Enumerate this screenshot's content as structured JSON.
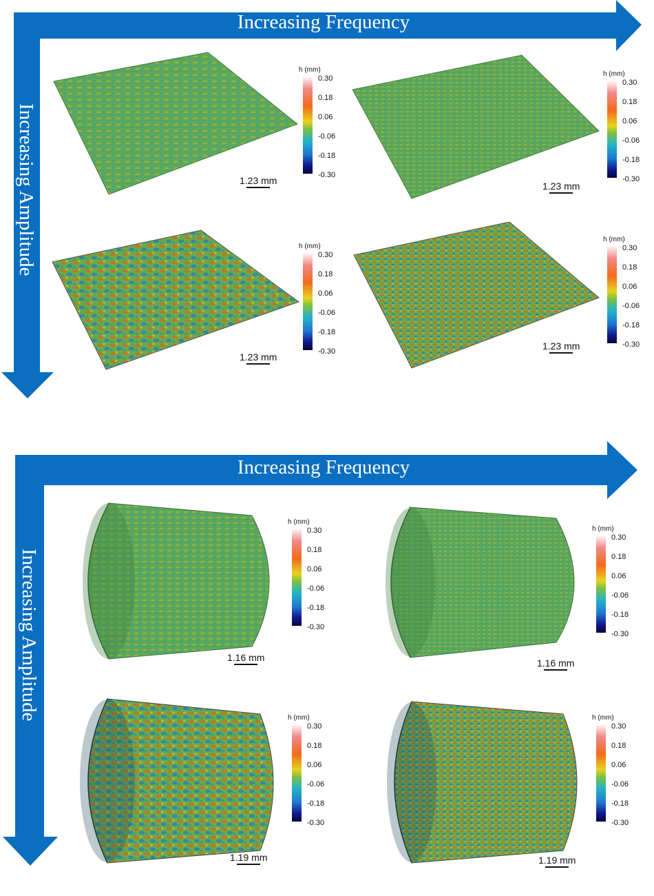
{
  "sections": [
    {
      "frequency_label": "Increasing Frequency",
      "amplitude_label": "Increasing Amplitude",
      "panels": [
        {
          "shape": "flat-plate",
          "roughness": "low",
          "scale": "1.23 mm"
        },
        {
          "shape": "flat-plate",
          "roughness": "low",
          "scale": "1.23 mm"
        },
        {
          "shape": "flat-plate",
          "roughness": "high",
          "scale": "1.23 mm"
        },
        {
          "shape": "flat-plate",
          "roughness": "high",
          "scale": "1.23 mm"
        }
      ]
    },
    {
      "frequency_label": "Increasing Frequency",
      "amplitude_label": "Increasing Amplitude",
      "panels": [
        {
          "shape": "cylinder",
          "roughness": "low",
          "scale": "1.16 mm"
        },
        {
          "shape": "cylinder",
          "roughness": "low",
          "scale": "1.16 mm"
        },
        {
          "shape": "cylinder",
          "roughness": "high",
          "scale": "1.19 mm"
        },
        {
          "shape": "cylinder",
          "roughness": "high",
          "scale": "1.19 mm"
        }
      ]
    }
  ],
  "colorbar": {
    "title": "h (mm)",
    "ticks": [
      "0.30",
      "0.18",
      "0.06",
      "-0.06",
      "-0.18",
      "-0.30"
    ]
  },
  "colors": {
    "arrow": "#0a6ec1",
    "text_on_arrow": "#ffffff"
  }
}
